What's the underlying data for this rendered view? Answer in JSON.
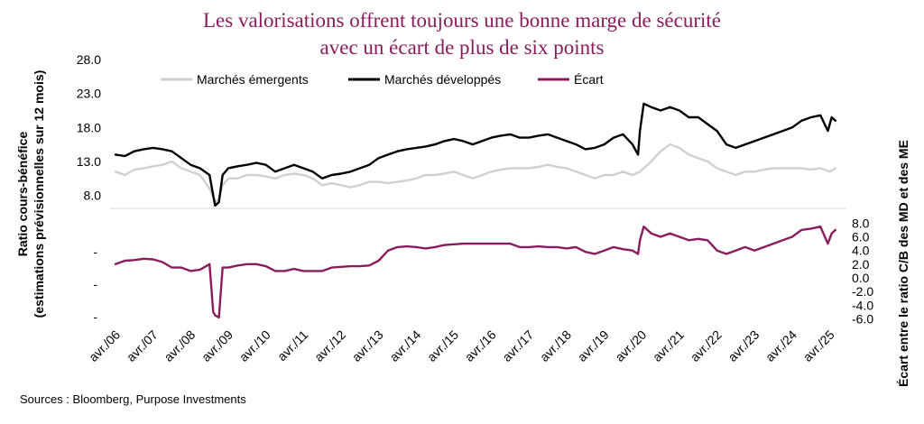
{
  "chart_data": {
    "type": "line",
    "title_lines": [
      "Les valorisations offrent toujours une bonne marge de sécurité",
      "avec un écart de plus de six points"
    ],
    "ylabel_left_lines": [
      "Ratio cours-bénéfice",
      "(estimations prévisionnelles sur 12 mois)"
    ],
    "ylabel_right": "Écart entre le ratio C/B des MD et des ME",
    "source": "Sources : Bloomberg, Purpose Investments",
    "x_tick_labels": [
      "avr./06",
      "avr./07",
      "avr./08",
      "avr./09",
      "avr./10",
      "avr./11",
      "avr./12",
      "avr./13",
      "avr./14",
      "avr./15",
      "avr./16",
      "avr./17",
      "avr./18",
      "avr./19",
      "avr./20",
      "avr./21",
      "avr./22",
      "avr./23",
      "avr./24",
      "avr./25"
    ],
    "x_range": [
      2006.25,
      2025.5
    ],
    "left_axis": {
      "range": [
        4.5,
        28.0
      ],
      "tick_labels": [
        "28.0",
        "23.0",
        "18.0",
        "13.0",
        "8.0"
      ],
      "tick_values": [
        28,
        23,
        18,
        13,
        8
      ],
      "extra_tick_labels": [
        "-",
        "-",
        "-"
      ]
    },
    "right_axis": {
      "range": [
        -7.0,
        9.5
      ],
      "tick_labels": [
        "8.0",
        "6.0",
        "4.0",
        "2.0",
        "0.0",
        "-2.0",
        "-4.0",
        "-6.0"
      ],
      "tick_values": [
        8,
        6,
        4,
        2,
        0,
        -2,
        -4,
        -6
      ]
    },
    "series": [
      {
        "name": "Marchés émergents",
        "axis": "left",
        "color": "#d0d0d0",
        "x": [
          2006.25,
          2006.5,
          2006.75,
          2007.0,
          2007.25,
          2007.5,
          2007.75,
          2008.0,
          2008.25,
          2008.5,
          2008.75,
          2008.9,
          2009.0,
          2009.1,
          2009.25,
          2009.5,
          2009.75,
          2010.0,
          2010.25,
          2010.5,
          2010.75,
          2011.0,
          2011.25,
          2011.5,
          2011.75,
          2012.0,
          2012.25,
          2012.5,
          2012.75,
          2013.0,
          2013.25,
          2013.5,
          2013.75,
          2014.0,
          2014.25,
          2014.5,
          2014.75,
          2015.0,
          2015.25,
          2015.5,
          2015.75,
          2016.0,
          2016.25,
          2016.5,
          2016.75,
          2017.0,
          2017.25,
          2017.5,
          2017.75,
          2018.0,
          2018.25,
          2018.5,
          2018.75,
          2019.0,
          2019.25,
          2019.5,
          2019.75,
          2020.0,
          2020.2,
          2020.5,
          2020.75,
          2021.0,
          2021.25,
          2021.5,
          2021.75,
          2022.0,
          2022.25,
          2022.5,
          2022.75,
          2023.0,
          2023.25,
          2023.5,
          2023.75,
          2024.0,
          2024.25,
          2024.5,
          2024.75,
          2025.0,
          2025.25,
          2025.4
        ],
        "values": [
          11.5,
          11.0,
          11.8,
          12.0,
          12.3,
          12.5,
          13.0,
          12.0,
          11.5,
          11.0,
          9.0,
          7.0,
          7.5,
          9.5,
          10.5,
          10.5,
          11.0,
          11.0,
          10.8,
          10.5,
          11.0,
          11.2,
          11.0,
          10.5,
          9.5,
          9.8,
          9.5,
          9.2,
          9.5,
          10.0,
          10.0,
          9.8,
          10.0,
          10.2,
          10.5,
          11.0,
          11.0,
          11.2,
          11.5,
          11.0,
          10.5,
          11.0,
          11.5,
          11.8,
          12.0,
          12.0,
          12.0,
          12.2,
          12.5,
          12.2,
          12.0,
          11.5,
          11.0,
          10.5,
          11.0,
          11.0,
          11.5,
          11.0,
          11.5,
          13.0,
          14.5,
          15.5,
          15.0,
          14.0,
          13.5,
          13.0,
          12.0,
          11.5,
          11.0,
          11.5,
          11.5,
          11.8,
          12.0,
          12.0,
          12.0,
          12.0,
          11.8,
          12.0,
          11.5,
          12.0
        ]
      },
      {
        "name": "Marchés développés",
        "axis": "left",
        "color": "#000000",
        "x": [
          2006.25,
          2006.5,
          2006.75,
          2007.0,
          2007.25,
          2007.5,
          2007.75,
          2008.0,
          2008.25,
          2008.5,
          2008.75,
          2008.85,
          2008.9,
          2009.0,
          2009.1,
          2009.25,
          2009.5,
          2009.75,
          2010.0,
          2010.25,
          2010.5,
          2010.75,
          2011.0,
          2011.25,
          2011.5,
          2011.75,
          2012.0,
          2012.25,
          2012.5,
          2012.75,
          2013.0,
          2013.25,
          2013.5,
          2013.75,
          2014.0,
          2014.25,
          2014.5,
          2014.75,
          2015.0,
          2015.25,
          2015.5,
          2015.75,
          2016.0,
          2016.25,
          2016.5,
          2016.75,
          2017.0,
          2017.25,
          2017.5,
          2017.75,
          2018.0,
          2018.25,
          2018.5,
          2018.75,
          2019.0,
          2019.25,
          2019.5,
          2019.75,
          2020.0,
          2020.15,
          2020.2,
          2020.3,
          2020.5,
          2020.75,
          2021.0,
          2021.25,
          2021.5,
          2021.75,
          2022.0,
          2022.25,
          2022.5,
          2022.75,
          2023.0,
          2023.25,
          2023.5,
          2023.75,
          2024.0,
          2024.25,
          2024.5,
          2024.75,
          2025.0,
          2025.2,
          2025.3,
          2025.4
        ],
        "values": [
          14.0,
          13.8,
          14.5,
          14.8,
          15.0,
          14.8,
          14.5,
          13.5,
          12.5,
          12.0,
          11.0,
          8.0,
          6.5,
          7.0,
          11.0,
          12.0,
          12.3,
          12.5,
          12.8,
          12.5,
          11.5,
          12.0,
          12.5,
          12.0,
          11.5,
          10.5,
          11.0,
          11.2,
          11.5,
          12.0,
          12.5,
          13.5,
          14.0,
          14.5,
          14.8,
          15.0,
          15.2,
          15.5,
          16.0,
          16.3,
          16.0,
          15.5,
          16.0,
          16.5,
          16.8,
          17.0,
          16.5,
          16.5,
          16.8,
          17.0,
          16.5,
          16.0,
          15.5,
          14.8,
          15.0,
          15.5,
          16.5,
          17.0,
          15.5,
          14.0,
          17.5,
          21.5,
          21.0,
          20.5,
          21.0,
          20.5,
          19.5,
          19.5,
          18.5,
          17.5,
          15.5,
          15.0,
          15.5,
          16.0,
          16.5,
          17.0,
          17.5,
          18.0,
          19.0,
          19.5,
          19.8,
          17.5,
          19.5,
          19.0
        ]
      },
      {
        "name": "Écart",
        "axis": "right",
        "color": "#8a1c5e",
        "x": [
          2006.25,
          2006.5,
          2006.75,
          2007.0,
          2007.25,
          2007.5,
          2007.75,
          2008.0,
          2008.25,
          2008.5,
          2008.75,
          2008.85,
          2008.9,
          2009.0,
          2009.1,
          2009.25,
          2009.5,
          2009.75,
          2010.0,
          2010.25,
          2010.5,
          2010.75,
          2011.0,
          2011.25,
          2011.5,
          2011.75,
          2012.0,
          2012.25,
          2012.5,
          2012.75,
          2013.0,
          2013.25,
          2013.5,
          2013.75,
          2014.0,
          2014.25,
          2014.5,
          2014.75,
          2015.0,
          2015.25,
          2015.5,
          2015.75,
          2016.0,
          2016.25,
          2016.5,
          2016.75,
          2017.0,
          2017.25,
          2017.5,
          2017.75,
          2018.0,
          2018.25,
          2018.5,
          2018.75,
          2019.0,
          2019.25,
          2019.5,
          2019.75,
          2020.0,
          2020.15,
          2020.2,
          2020.3,
          2020.5,
          2020.75,
          2021.0,
          2021.25,
          2021.5,
          2021.75,
          2022.0,
          2022.25,
          2022.5,
          2022.75,
          2023.0,
          2023.25,
          2023.5,
          2023.75,
          2024.0,
          2024.25,
          2024.5,
          2024.75,
          2025.0,
          2025.2,
          2025.3,
          2025.4
        ],
        "values": [
          2.0,
          2.5,
          2.6,
          2.8,
          2.7,
          2.3,
          1.5,
          1.5,
          1.0,
          1.2,
          2.0,
          -5.0,
          -5.5,
          -5.8,
          1.5,
          1.5,
          1.8,
          2.0,
          2.0,
          1.7,
          1.0,
          1.0,
          1.3,
          1.0,
          1.0,
          1.0,
          1.5,
          1.6,
          1.7,
          1.7,
          1.8,
          2.5,
          4.0,
          4.5,
          4.6,
          4.5,
          4.3,
          4.5,
          4.8,
          4.9,
          5.0,
          5.0,
          5.0,
          5.0,
          5.0,
          5.0,
          4.5,
          4.5,
          4.6,
          4.5,
          4.5,
          4.3,
          4.5,
          3.8,
          3.5,
          4.0,
          4.5,
          4.2,
          4.0,
          3.5,
          5.5,
          7.5,
          6.5,
          6.0,
          6.5,
          6.0,
          5.5,
          5.7,
          5.5,
          4.0,
          3.5,
          4.0,
          4.5,
          4.0,
          4.5,
          5.0,
          5.5,
          6.0,
          7.0,
          7.2,
          7.5,
          5.0,
          6.5,
          7.0
        ]
      }
    ]
  }
}
